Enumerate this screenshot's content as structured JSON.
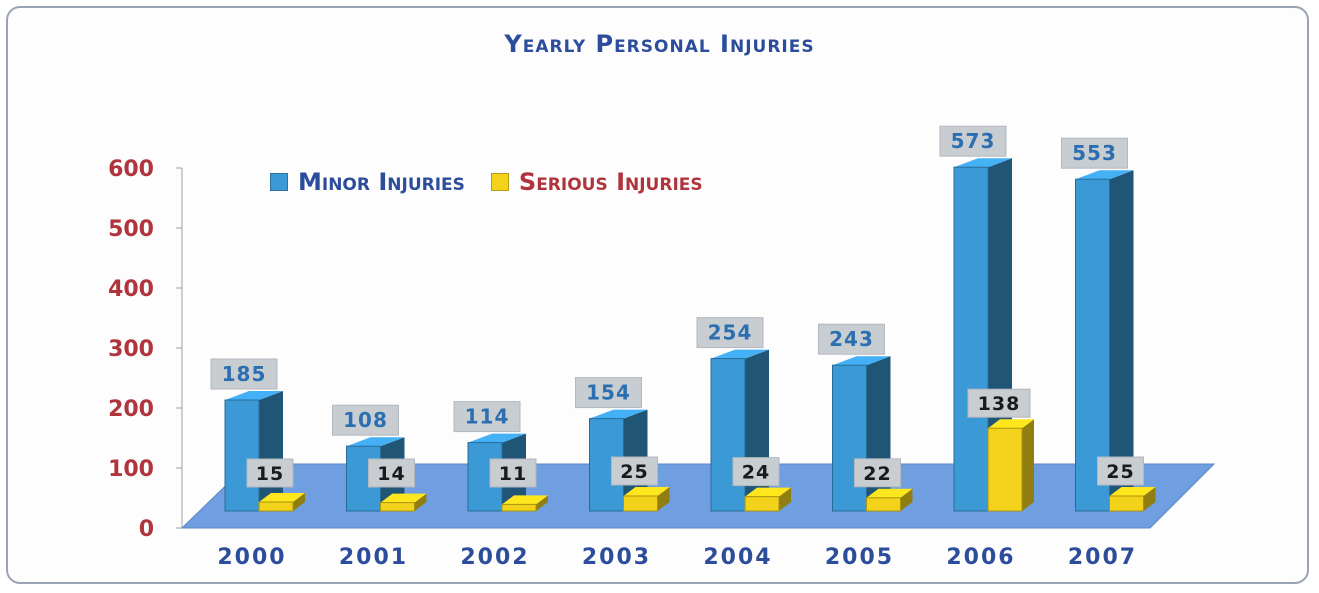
{
  "chart_data": {
    "type": "bar",
    "title": "Yearly Personal Injuries",
    "categories": [
      "2000",
      "2001",
      "2002",
      "2003",
      "2004",
      "2005",
      "2006",
      "2007"
    ],
    "series": [
      {
        "name": "Minor Injuries",
        "values": [
          185,
          108,
          114,
          154,
          254,
          243,
          573,
          553
        ],
        "color": "#3b9ad6"
      },
      {
        "name": "Serious Injuries",
        "values": [
          15,
          14,
          11,
          25,
          24,
          22,
          138,
          25
        ],
        "color": "#f2d21a"
      }
    ],
    "y_ticks": [
      "0",
      "100",
      "200",
      "300",
      "400",
      "500",
      "600"
    ],
    "ylim": [
      0,
      600
    ],
    "xlabel": "",
    "ylabel": "",
    "grid": false,
    "legend_position": "top-left",
    "three_d": true
  },
  "colors": {
    "title": "#2c4d9c",
    "axis_tick": "#b0343c",
    "category_label": "#2c4d9c",
    "minor_label": "#2c6fb0",
    "serious_label": "#1a1a1a",
    "floor": "#6f9fe0",
    "label_box": "#c8cdd2"
  }
}
